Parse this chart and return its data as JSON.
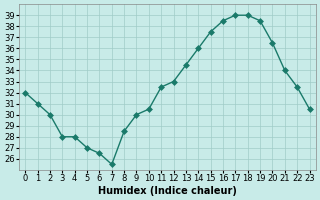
{
  "x": [
    0,
    1,
    2,
    3,
    4,
    5,
    6,
    7,
    8,
    9,
    10,
    11,
    12,
    13,
    14,
    15,
    16,
    17,
    18,
    19,
    20,
    21,
    22,
    23
  ],
  "y": [
    32,
    31,
    30,
    28,
    28,
    27,
    26.5,
    25.5,
    28.5,
    30,
    30.5,
    32.5,
    33,
    34.5,
    36,
    37.5,
    38.5,
    39,
    39,
    38.5,
    36.5,
    34,
    32.5,
    30.5
  ],
  "line_color": "#1a7a6a",
  "marker": "D",
  "marker_size": 3,
  "bg_color": "#c8ebe8",
  "grid_color": "#a0ccc8",
  "xlabel": "Humidex (Indice chaleur)",
  "ylim": [
    25,
    40
  ],
  "xlim": [
    -0.5,
    23.5
  ],
  "yticks": [
    26,
    27,
    28,
    29,
    30,
    31,
    32,
    33,
    34,
    35,
    36,
    37,
    38,
    39
  ],
  "xticks": [
    0,
    1,
    2,
    3,
    4,
    5,
    6,
    7,
    8,
    9,
    10,
    11,
    12,
    13,
    14,
    15,
    16,
    17,
    18,
    19,
    20,
    21,
    22,
    23
  ],
  "label_fontsize": 7,
  "tick_fontsize": 6
}
